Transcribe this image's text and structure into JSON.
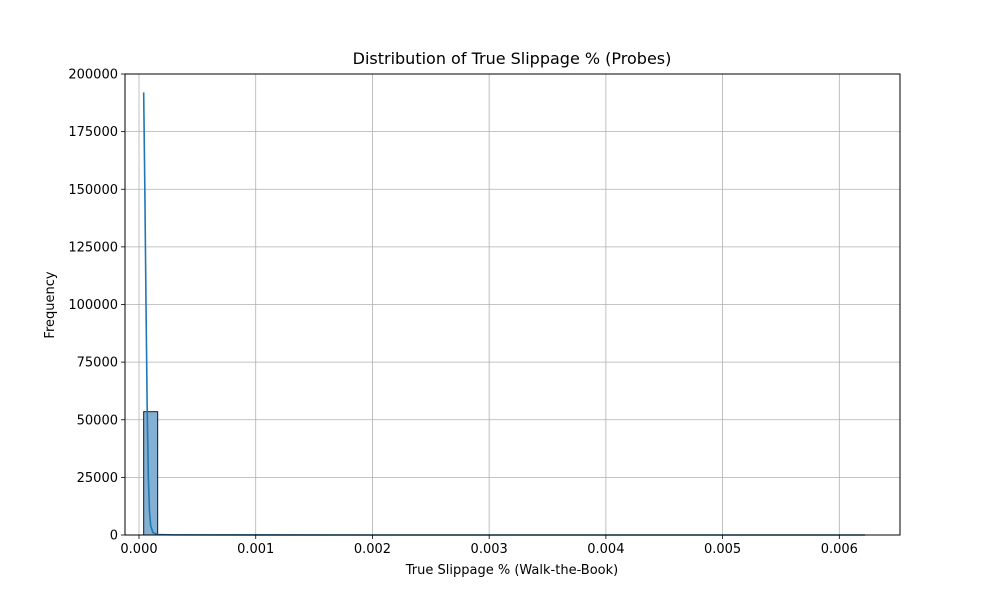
{
  "chart_data": {
    "type": "histogram",
    "title": "Distribution of True Slippage % (Probes)",
    "xlabel": "True Slippage % (Walk-the-Book)",
    "ylabel": "Frequency",
    "xlim": [
      -0.00012,
      0.00652
    ],
    "ylim": [
      0,
      200000
    ],
    "x_ticks": [
      0.0,
      0.001,
      0.002,
      0.003,
      0.004,
      0.005,
      0.006
    ],
    "x_tick_labels": [
      "0.000",
      "0.001",
      "0.002",
      "0.003",
      "0.004",
      "0.005",
      "0.006"
    ],
    "y_ticks": [
      0,
      25000,
      50000,
      75000,
      100000,
      125000,
      150000,
      175000,
      200000
    ],
    "y_tick_labels": [
      "0",
      "25000",
      "50000",
      "75000",
      "100000",
      "125000",
      "150000",
      "175000",
      "200000"
    ],
    "grid": true,
    "bins": [
      {
        "x0": 4e-05,
        "x1": 0.00016,
        "count": 53500
      }
    ],
    "kde_line": {
      "x": [
        4e-05,
        5e-05,
        6e-05,
        7e-05,
        8e-05,
        9e-05,
        0.0001,
        0.00012,
        0.00016,
        0.0003,
        0.001,
        0.002,
        0.003,
        0.004,
        0.005,
        0.006,
        0.00622
      ],
      "y": [
        192000,
        150000,
        100000,
        55000,
        25000,
        10000,
        4000,
        1000,
        200,
        50,
        10,
        5,
        5,
        5,
        5,
        5,
        5
      ]
    },
    "colors": {
      "bar_fill": "#84b0d3",
      "bar_edge": "#1a1a1a",
      "kde_line": "#1f77b4",
      "grid": "#b0b0b0"
    }
  }
}
